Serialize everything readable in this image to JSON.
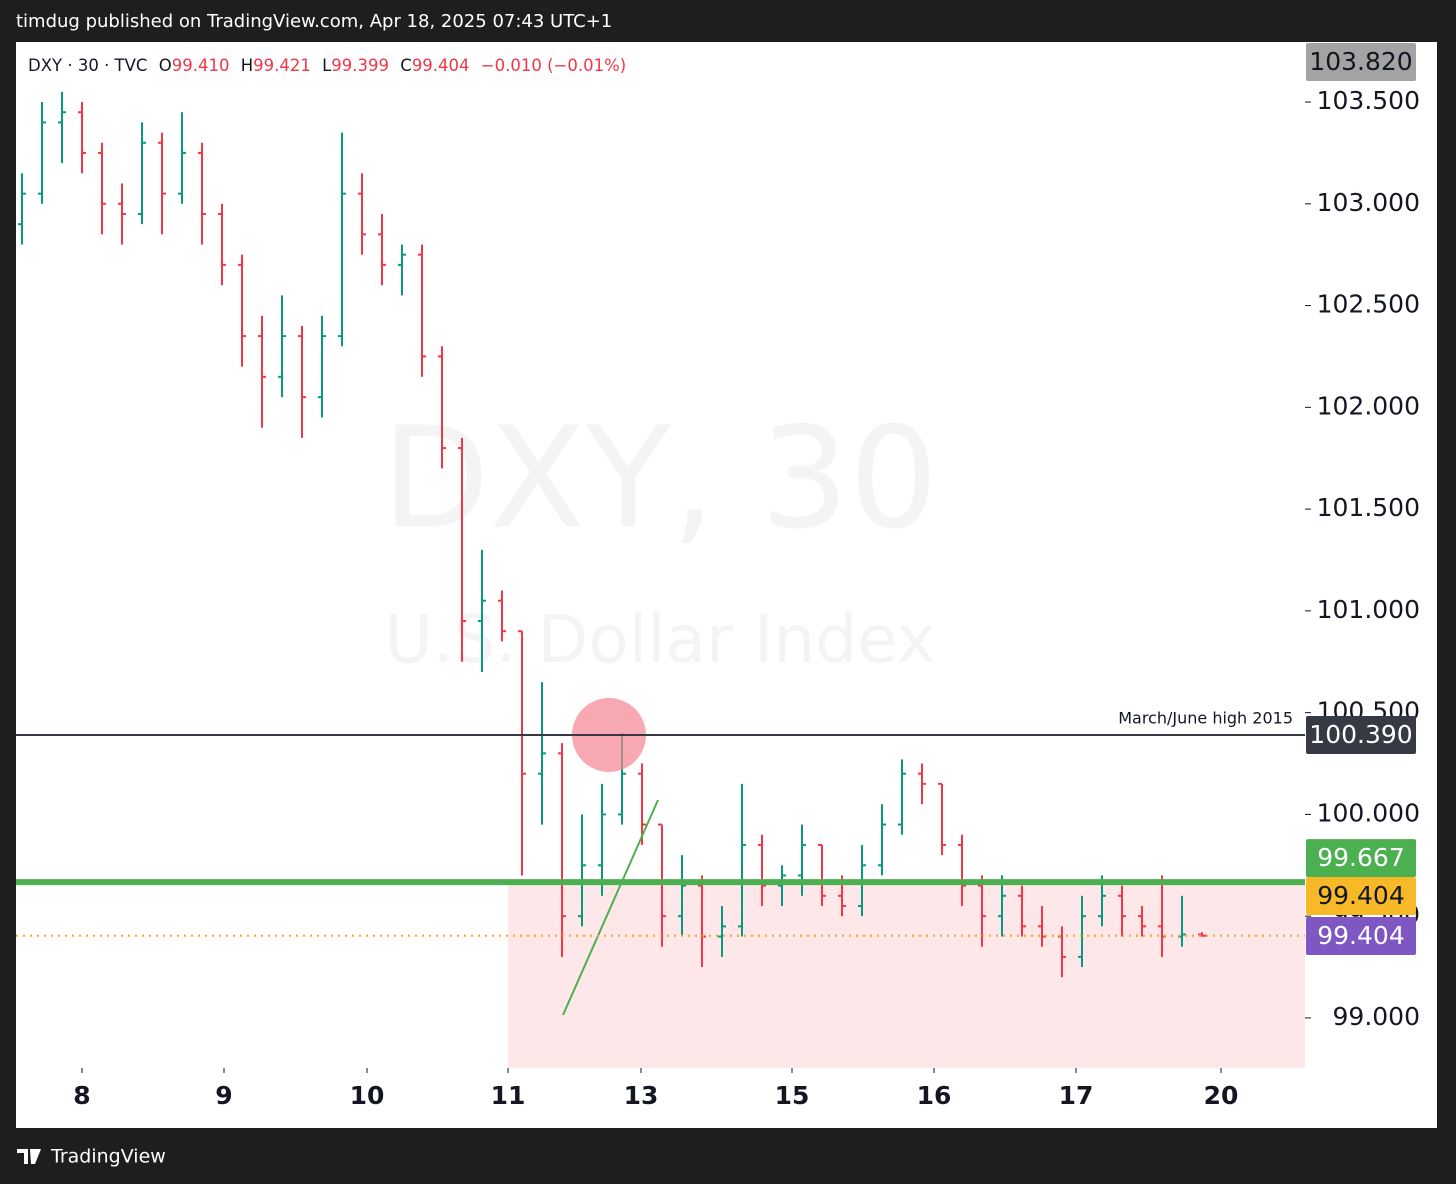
{
  "header": "timdug published on TradingView.com, Apr 18, 2025 07:43 UTC+1",
  "footer": "TradingView",
  "chart_data": {
    "type": "ohlc",
    "legend": {
      "symbol": "DXY · 30 · TVC",
      "o_label": "O",
      "o": "99.410",
      "h_label": "H",
      "h": "99.421",
      "l_label": "L",
      "l": "99.399",
      "c_label": "C",
      "c": "99.404",
      "change": "−0.010 (−0.01%)"
    },
    "watermark": [
      "DXY, 30",
      "U.S. Dollar Index"
    ],
    "up_color": "#089981",
    "down_color": "#f23645",
    "x": [
      0,
      1,
      2,
      3,
      4,
      5,
      6,
      7,
      8,
      9,
      10,
      11,
      12,
      13,
      14,
      15,
      16,
      17,
      18,
      19,
      20,
      21,
      22,
      23,
      24,
      25,
      26,
      27,
      28,
      29,
      30,
      31,
      32,
      33,
      34,
      35,
      36,
      37,
      38,
      39,
      40,
      41,
      42,
      43,
      44,
      45,
      46,
      47,
      48,
      49,
      50,
      51,
      52,
      53,
      54,
      55,
      56,
      57,
      58,
      59
    ],
    "open": [
      102.9,
      103.05,
      103.4,
      103.45,
      103.25,
      103.0,
      102.95,
      103.3,
      103.05,
      103.25,
      102.95,
      102.7,
      102.35,
      102.15,
      102.35,
      102.05,
      102.35,
      103.05,
      102.85,
      102.7,
      102.75,
      102.25,
      101.8,
      100.95,
      101.05,
      100.9,
      100.2,
      100.3,
      99.5,
      99.75,
      100.0,
      100.2,
      99.95,
      99.5,
      99.65,
      99.4,
      99.45,
      99.85,
      99.65,
      99.7,
      99.85,
      99.6,
      99.55,
      99.75,
      99.95,
      100.2,
      100.15,
      99.85,
      99.65,
      99.5,
      99.6,
      99.45,
      99.4,
      99.3,
      99.5,
      99.6,
      99.5,
      99.45,
      99.4,
      99.41
    ],
    "high": [
      103.15,
      103.5,
      103.55,
      103.5,
      103.3,
      103.1,
      103.4,
      103.35,
      103.45,
      103.3,
      103.0,
      102.75,
      102.45,
      102.55,
      102.4,
      102.45,
      103.35,
      103.15,
      102.95,
      102.8,
      102.8,
      102.3,
      101.85,
      101.3,
      101.1,
      100.9,
      100.65,
      100.35,
      100.0,
      100.15,
      100.4,
      100.25,
      99.95,
      99.8,
      99.7,
      99.55,
      100.15,
      99.9,
      99.75,
      99.95,
      99.85,
      99.7,
      99.85,
      100.05,
      100.27,
      100.25,
      100.15,
      99.9,
      99.7,
      99.7,
      99.65,
      99.55,
      99.45,
      99.6,
      99.7,
      99.65,
      99.55,
      99.7,
      99.6,
      99.421
    ],
    "low": [
      102.8,
      103.0,
      103.2,
      103.15,
      102.85,
      102.8,
      102.9,
      102.85,
      103.0,
      102.8,
      102.6,
      102.2,
      101.9,
      102.05,
      101.85,
      101.95,
      102.3,
      102.75,
      102.6,
      102.55,
      102.15,
      101.7,
      100.75,
      100.7,
      100.85,
      99.7,
      99.95,
      99.3,
      99.45,
      99.6,
      99.95,
      99.85,
      99.35,
      99.4,
      99.25,
      99.3,
      99.4,
      99.55,
      99.55,
      99.6,
      99.55,
      99.5,
      99.5,
      99.7,
      99.9,
      100.05,
      99.8,
      99.55,
      99.35,
      99.4,
      99.4,
      99.35,
      99.2,
      99.25,
      99.45,
      99.4,
      99.4,
      99.3,
      99.35,
      99.399
    ],
    "close": [
      103.05,
      103.4,
      103.45,
      103.25,
      103.0,
      102.95,
      103.3,
      103.05,
      103.25,
      102.95,
      102.7,
      102.35,
      102.15,
      102.35,
      102.05,
      102.35,
      103.05,
      102.85,
      102.7,
      102.75,
      102.25,
      101.8,
      100.95,
      101.05,
      100.9,
      100.2,
      100.3,
      99.5,
      99.75,
      100.0,
      100.2,
      99.95,
      99.5,
      99.65,
      99.4,
      99.45,
      99.85,
      99.65,
      99.7,
      99.85,
      99.6,
      99.55,
      99.75,
      99.95,
      100.2,
      100.15,
      99.85,
      99.65,
      99.5,
      99.6,
      99.45,
      99.4,
      99.3,
      99.5,
      99.6,
      99.5,
      99.45,
      99.4,
      99.41,
      99.404
    ],
    "xlim": [
      -0.3,
      64.15
    ],
    "xticks": [
      {
        "value": 3.0,
        "label": "8"
      },
      {
        "value": 10.1,
        "label": "9"
      },
      {
        "value": 17.25,
        "label": "10"
      },
      {
        "value": 24.3,
        "label": "11"
      },
      {
        "value": 30.95,
        "label": "13"
      },
      {
        "value": 38.5,
        "label": "15"
      },
      {
        "value": 45.6,
        "label": "16"
      },
      {
        "value": 52.7,
        "label": "17"
      },
      {
        "value": 59.95,
        "label": "20"
      }
    ],
    "ylim": [
      98.754,
      103.795
    ],
    "yticks": [
      {
        "value": 99,
        "label": "99.000"
      },
      {
        "value": 99.5,
        "label": "99.500"
      },
      {
        "value": 100,
        "label": "100.000"
      },
      {
        "value": 100.5,
        "label": "100.500"
      },
      {
        "value": 101,
        "label": "101.000"
      },
      {
        "value": 101.5,
        "label": "101.500"
      },
      {
        "value": 102,
        "label": "102.000"
      },
      {
        "value": 102.5,
        "label": "102.500"
      },
      {
        "value": 103,
        "label": "103.000"
      },
      {
        "value": 103.5,
        "label": "103.500"
      }
    ],
    "levels": [
      {
        "value": 100.39,
        "label": "100.390",
        "text": "March/June high 2015",
        "color": "#363a45",
        "width": 2
      },
      {
        "value": 99.667,
        "label": "99.667",
        "color": "#4caf50",
        "width": 6
      }
    ],
    "last_price": {
      "value": 99.404,
      "label": "99.404",
      "color": "#f5a623"
    },
    "price_tags": [
      {
        "label": "103.820",
        "color": "#a3a3a3",
        "text_color": "#131722"
      },
      {
        "label": "99.404",
        "color": "#f7b928",
        "text_color": "#131722"
      },
      {
        "label": "99.404",
        "color": "#7e57c2",
        "text_color": "#ffffff"
      }
    ]
  }
}
